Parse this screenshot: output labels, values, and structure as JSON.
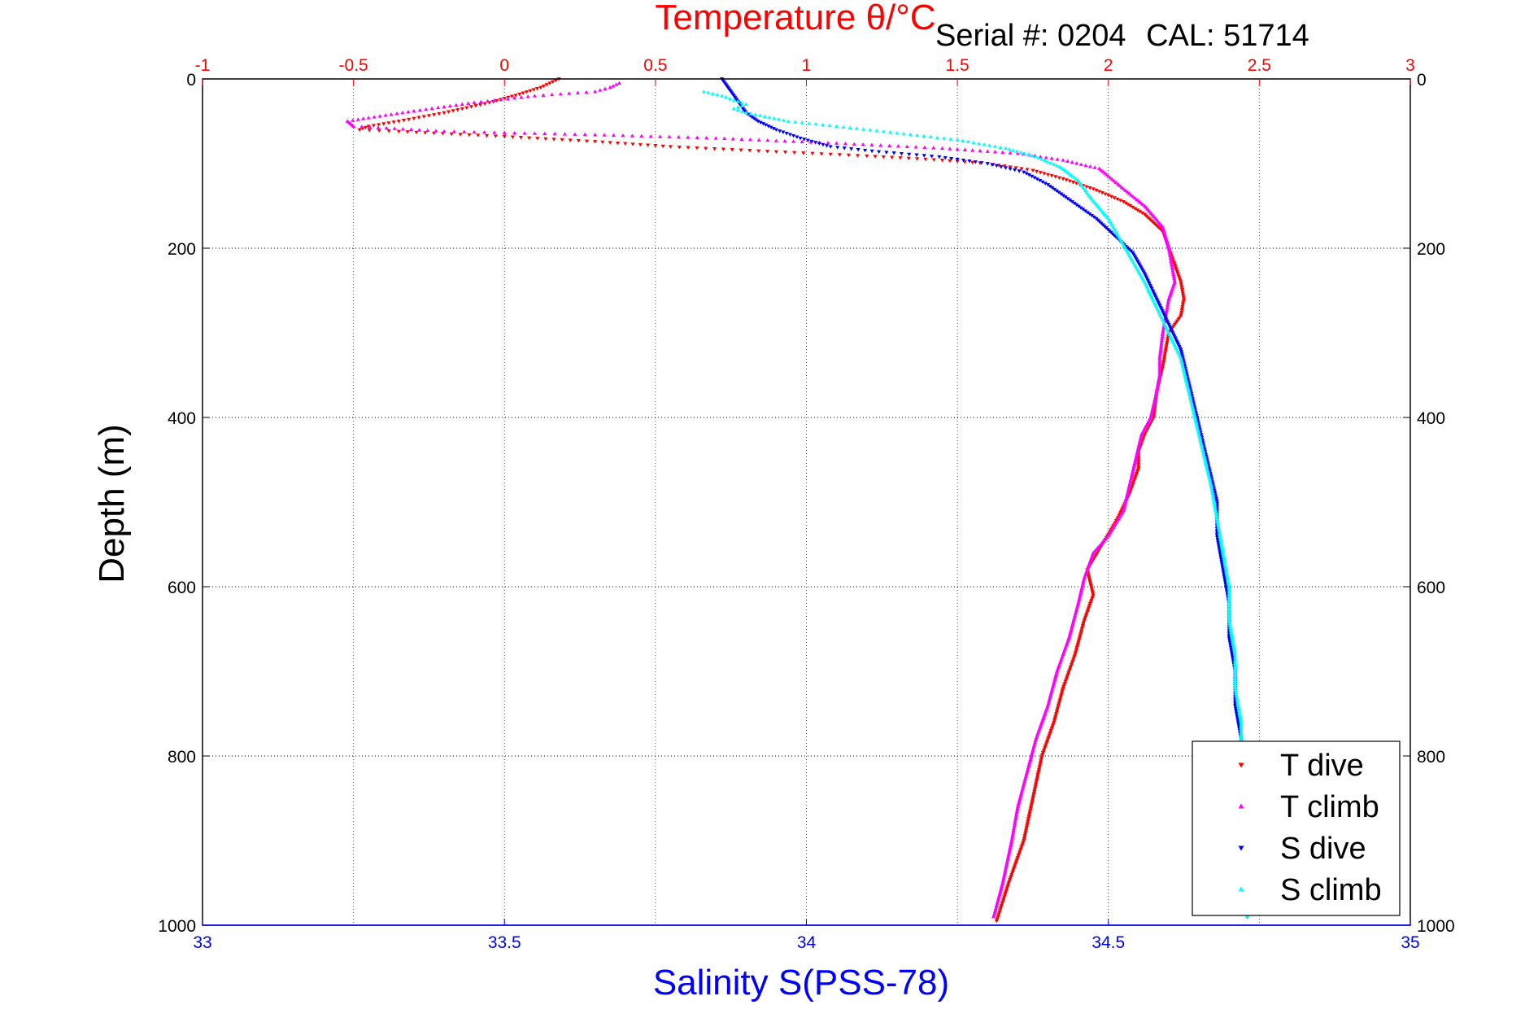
{
  "chart_data": {
    "type": "scatter",
    "title": "Temperature θ/°C",
    "header": {
      "serial_label": "Serial #:",
      "serial_value": "0204",
      "cal_label": "CAL:",
      "cal_value": "51714"
    },
    "xlabel": "Salinity S(PSS-78)",
    "ylabel": "Depth (m)",
    "x_salinity": {
      "lim": [
        33,
        35
      ],
      "ticks": [
        "33",
        "33.5",
        "34",
        "34.5",
        "35"
      ]
    },
    "x_temperature": {
      "lim": [
        -1,
        3
      ],
      "ticks": [
        "-1",
        "-0.5",
        "0",
        "0.5",
        "1",
        "1.5",
        "2",
        "2.5",
        "3"
      ]
    },
    "y_depth": {
      "lim": [
        0,
        1000
      ],
      "reversed": true,
      "ticks": [
        "0",
        "200",
        "400",
        "600",
        "800",
        "1000"
      ]
    },
    "grid": true,
    "legend_position": "bottom-right",
    "colors": {
      "temperature_axis": "#ff0000",
      "salinity_axis": "#0000ff",
      "grid": "#000000",
      "frame": "#000000"
    },
    "series": [
      {
        "name": "T dive",
        "axis": "temperature",
        "marker": "triangle-down",
        "color": "#ff0000",
        "points": [
          [
            0.18,
            0
          ],
          [
            0.15,
            5
          ],
          [
            0.12,
            10
          ],
          [
            0.05,
            18
          ],
          [
            -0.05,
            28
          ],
          [
            -0.2,
            40
          ],
          [
            -0.35,
            50
          ],
          [
            -0.45,
            56
          ],
          [
            -0.48,
            60
          ],
          [
            -0.35,
            62
          ],
          [
            0.0,
            68
          ],
          [
            0.3,
            74
          ],
          [
            0.55,
            80
          ],
          [
            0.9,
            86
          ],
          [
            1.2,
            91
          ],
          [
            1.45,
            96
          ],
          [
            1.6,
            100
          ],
          [
            1.75,
            108
          ],
          [
            1.85,
            118
          ],
          [
            1.95,
            130
          ],
          [
            2.05,
            145
          ],
          [
            2.12,
            160
          ],
          [
            2.18,
            180
          ],
          [
            2.2,
            200
          ],
          [
            2.22,
            220
          ],
          [
            2.24,
            240
          ],
          [
            2.25,
            260
          ],
          [
            2.24,
            280
          ],
          [
            2.2,
            300
          ],
          [
            2.19,
            320
          ],
          [
            2.18,
            340
          ],
          [
            2.16,
            370
          ],
          [
            2.15,
            400
          ],
          [
            2.12,
            420
          ],
          [
            2.1,
            440
          ],
          [
            2.1,
            460
          ],
          [
            2.07,
            490
          ],
          [
            2.03,
            520
          ],
          [
            1.98,
            550
          ],
          [
            1.93,
            580
          ],
          [
            1.95,
            610
          ],
          [
            1.92,
            640
          ],
          [
            1.89,
            680
          ],
          [
            1.85,
            720
          ],
          [
            1.82,
            760
          ],
          [
            1.78,
            800
          ],
          [
            1.75,
            850
          ],
          [
            1.72,
            900
          ],
          [
            1.67,
            950
          ],
          [
            1.63,
            995
          ]
        ]
      },
      {
        "name": "T climb",
        "axis": "temperature",
        "marker": "triangle-up",
        "color": "#ff00ff",
        "points": [
          [
            0.38,
            5
          ],
          [
            0.35,
            10
          ],
          [
            0.3,
            15
          ],
          [
            0.1,
            20
          ],
          [
            -0.1,
            28
          ],
          [
            -0.3,
            38
          ],
          [
            -0.45,
            46
          ],
          [
            -0.52,
            50
          ],
          [
            -0.5,
            56
          ],
          [
            -0.2,
            62
          ],
          [
            0.3,
            66
          ],
          [
            0.7,
            70
          ],
          [
            1.1,
            76
          ],
          [
            1.45,
            82
          ],
          [
            1.7,
            88
          ],
          [
            1.85,
            96
          ],
          [
            1.97,
            106
          ],
          [
            2.0,
            115
          ],
          [
            2.05,
            130
          ],
          [
            2.12,
            150
          ],
          [
            2.18,
            175
          ],
          [
            2.2,
            200
          ],
          [
            2.21,
            220
          ],
          [
            2.22,
            240
          ],
          [
            2.2,
            260
          ],
          [
            2.19,
            280
          ],
          [
            2.18,
            300
          ],
          [
            2.17,
            330
          ],
          [
            2.17,
            350
          ],
          [
            2.16,
            370
          ],
          [
            2.14,
            400
          ],
          [
            2.11,
            420
          ],
          [
            2.09,
            450
          ],
          [
            2.07,
            480
          ],
          [
            2.05,
            510
          ],
          [
            2.0,
            540
          ],
          [
            1.95,
            560
          ],
          [
            1.92,
            590
          ],
          [
            1.9,
            620
          ],
          [
            1.87,
            660
          ],
          [
            1.83,
            700
          ],
          [
            1.8,
            740
          ],
          [
            1.76,
            780
          ],
          [
            1.73,
            820
          ],
          [
            1.7,
            860
          ],
          [
            1.68,
            900
          ],
          [
            1.65,
            950
          ],
          [
            1.62,
            990
          ]
        ]
      },
      {
        "name": "S dive",
        "axis": "salinity",
        "marker": "triangle-down",
        "color": "#0000ff",
        "points": [
          [
            33.86,
            0
          ],
          [
            33.87,
            10
          ],
          [
            33.88,
            20
          ],
          [
            33.89,
            30
          ],
          [
            33.9,
            40
          ],
          [
            33.92,
            50
          ],
          [
            33.95,
            60
          ],
          [
            33.99,
            70
          ],
          [
            34.04,
            80
          ],
          [
            34.12,
            86
          ],
          [
            34.22,
            92
          ],
          [
            34.3,
            100
          ],
          [
            34.36,
            110
          ],
          [
            34.4,
            125
          ],
          [
            34.44,
            145
          ],
          [
            34.48,
            165
          ],
          [
            34.51,
            185
          ],
          [
            34.54,
            205
          ],
          [
            34.56,
            230
          ],
          [
            34.58,
            260
          ],
          [
            34.6,
            290
          ],
          [
            34.62,
            320
          ],
          [
            34.63,
            350
          ],
          [
            34.64,
            380
          ],
          [
            34.65,
            410
          ],
          [
            34.66,
            440
          ],
          [
            34.67,
            470
          ],
          [
            34.68,
            500
          ],
          [
            34.68,
            540
          ],
          [
            34.69,
            580
          ],
          [
            34.7,
            620
          ],
          [
            34.7,
            660
          ],
          [
            34.71,
            700
          ],
          [
            34.71,
            740
          ],
          [
            34.72,
            780
          ],
          [
            34.72,
            820
          ],
          [
            34.72,
            860
          ],
          [
            34.72,
            900
          ],
          [
            34.72,
            950
          ],
          [
            34.73,
            990
          ]
        ]
      },
      {
        "name": "S climb",
        "axis": "salinity",
        "marker": "triangle-up",
        "color": "#00ffff",
        "points": [
          [
            33.83,
            15
          ],
          [
            33.86,
            20
          ],
          [
            33.88,
            25
          ],
          [
            33.9,
            30
          ],
          [
            33.88,
            35
          ],
          [
            33.9,
            40
          ],
          [
            33.97,
            50
          ],
          [
            34.05,
            56
          ],
          [
            34.15,
            64
          ],
          [
            34.25,
            72
          ],
          [
            34.33,
            82
          ],
          [
            34.38,
            92
          ],
          [
            34.42,
            104
          ],
          [
            34.45,
            120
          ],
          [
            34.47,
            140
          ],
          [
            34.5,
            165
          ],
          [
            34.52,
            190
          ],
          [
            34.54,
            215
          ],
          [
            34.56,
            240
          ],
          [
            34.58,
            270
          ],
          [
            34.6,
            300
          ],
          [
            34.62,
            330
          ],
          [
            34.63,
            360
          ],
          [
            34.64,
            390
          ],
          [
            34.65,
            420
          ],
          [
            34.66,
            450
          ],
          [
            34.67,
            480
          ],
          [
            34.68,
            520
          ],
          [
            34.69,
            560
          ],
          [
            34.7,
            600
          ],
          [
            34.7,
            640
          ],
          [
            34.71,
            680
          ],
          [
            34.71,
            720
          ],
          [
            34.72,
            760
          ],
          [
            34.72,
            800
          ],
          [
            34.72,
            850
          ],
          [
            34.72,
            900
          ],
          [
            34.73,
            950
          ],
          [
            34.73,
            990
          ]
        ]
      }
    ]
  }
}
